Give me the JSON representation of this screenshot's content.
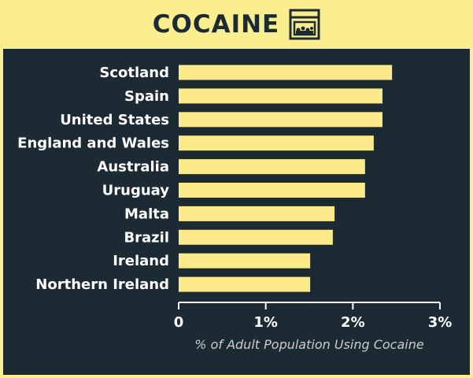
{
  "header": {
    "title": "COCAINE",
    "icon": "jar-icon"
  },
  "colors": {
    "background": "#fbee8f",
    "panel": "#1c2a33",
    "bar": "#fbe98a",
    "axis": "#ffffff"
  },
  "chart_data": {
    "type": "bar",
    "orientation": "horizontal",
    "title": "COCAINE",
    "xlabel": "% of Adult Population Using Cocaine",
    "ylabel": "",
    "xlim": [
      0,
      3
    ],
    "ticks": [
      0,
      1,
      2,
      3
    ],
    "tick_labels": [
      "0",
      "1%",
      "2%",
      "3%"
    ],
    "grid": false,
    "categories": [
      "Scotland",
      "Spain",
      "United States",
      "England and Wales",
      "Australia",
      "Uruguay",
      "Malta",
      "Brazil",
      "Ireland",
      "Northern Ireland"
    ],
    "values": [
      2.45,
      2.34,
      2.34,
      2.24,
      2.14,
      2.14,
      1.79,
      1.77,
      1.51,
      1.51
    ]
  }
}
